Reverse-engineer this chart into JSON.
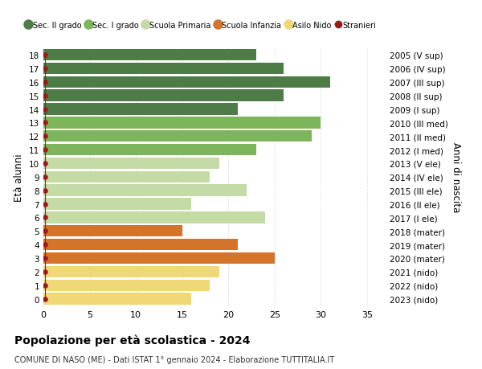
{
  "ages": [
    18,
    17,
    16,
    15,
    14,
    13,
    12,
    11,
    10,
    9,
    8,
    7,
    6,
    5,
    4,
    3,
    2,
    1,
    0
  ],
  "right_labels": [
    "2005 (V sup)",
    "2006 (IV sup)",
    "2007 (III sup)",
    "2008 (II sup)",
    "2009 (I sup)",
    "2010 (III med)",
    "2011 (II med)",
    "2012 (I med)",
    "2013 (V ele)",
    "2014 (IV ele)",
    "2015 (III ele)",
    "2016 (II ele)",
    "2017 (I ele)",
    "2018 (mater)",
    "2019 (mater)",
    "2020 (mater)",
    "2021 (nido)",
    "2022 (nido)",
    "2023 (nido)"
  ],
  "bar_values": [
    23,
    26,
    31,
    26,
    21,
    30,
    29,
    23,
    19,
    18,
    22,
    16,
    24,
    15,
    21,
    25,
    19,
    18,
    16
  ],
  "bar_colors": [
    "#4e7c47",
    "#4e7c47",
    "#4e7c47",
    "#4e7c47",
    "#4e7c47",
    "#7db55a",
    "#7db55a",
    "#7db55a",
    "#c5dba5",
    "#c5dba5",
    "#c5dba5",
    "#c5dba5",
    "#c5dba5",
    "#d4732a",
    "#d4732a",
    "#d4732a",
    "#f0d878",
    "#f0d878",
    "#f0d878"
  ],
  "dot_color": "#9e1a1a",
  "legend_labels": [
    "Sec. II grado",
    "Sec. I grado",
    "Scuola Primaria",
    "Scuola Infanzia",
    "Asilo Nido",
    "Stranieri"
  ],
  "legend_colors": [
    "#4e7c47",
    "#7db55a",
    "#c5dba5",
    "#d4732a",
    "#f0d878",
    "#9e1a1a"
  ],
  "ylabel": "Età alunni",
  "right_ylabel": "Anni di nascita",
  "xlim": [
    0,
    37
  ],
  "xticks": [
    0,
    5,
    10,
    15,
    20,
    25,
    30,
    35
  ],
  "title": "Popolazione per età scolastica - 2024",
  "subtitle": "COMUNE DI NASO (ME) - Dati ISTAT 1° gennaio 2024 - Elaborazione TUTTITALIA.IT",
  "bg_color": "#ffffff",
  "bar_height": 0.85
}
